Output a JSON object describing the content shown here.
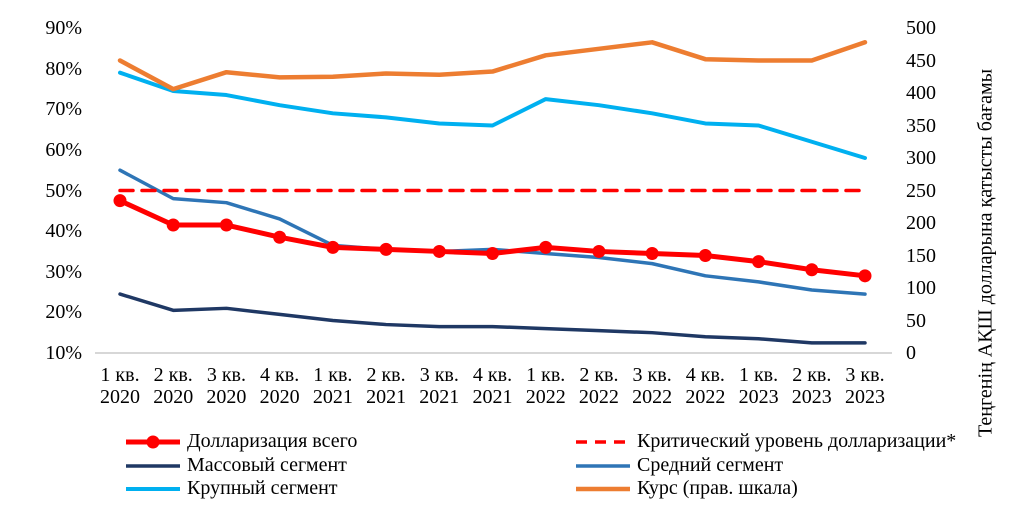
{
  "chart_data": {
    "type": "line",
    "categories": [
      "1 кв. 2020",
      "2 кв. 2020",
      "3 кв. 2020",
      "4 кв. 2020",
      "1 кв. 2021",
      "2 кв. 2021",
      "3 кв. 2021",
      "4 кв. 2021",
      "1 кв. 2022",
      "2 кв. 2022",
      "3 кв. 2022",
      "4 кв. 2022",
      "1 кв. 2023",
      "2 кв. 2023",
      "3 кв. 2023"
    ],
    "series": [
      {
        "key": "dollarization_total",
        "name": "Долларизация всего",
        "axis": "left",
        "color": "#FF0000",
        "style": "solid-marker",
        "width": 5,
        "values": [
          47.5,
          41.5,
          41.5,
          38.5,
          36,
          35.5,
          35,
          34.5,
          36,
          35,
          34.5,
          34,
          32.5,
          30.5,
          29
        ]
      },
      {
        "key": "critical_level",
        "name": "Критический уровень долларизации*",
        "axis": "left",
        "color": "#FF0000",
        "style": "dashed",
        "width": 3.5,
        "values": [
          50,
          50,
          50,
          50,
          50,
          50,
          50,
          50,
          50,
          50,
          50,
          50,
          50,
          50,
          50
        ]
      },
      {
        "key": "mass_segment",
        "name": "Массовый сегмент",
        "axis": "left",
        "color": "#1F3864",
        "style": "solid",
        "width": 3.5,
        "values": [
          24.5,
          20.5,
          21,
          19.5,
          18,
          17,
          16.5,
          16.5,
          16,
          15.5,
          15,
          14,
          13.5,
          12.5,
          12.5
        ]
      },
      {
        "key": "medium_segment",
        "name": "Средний сегмент",
        "axis": "left",
        "color": "#2E75B6",
        "style": "solid",
        "width": 3.5,
        "values": [
          55,
          48,
          47,
          43,
          36.5,
          35.5,
          35,
          35.5,
          34.5,
          33.5,
          32,
          29,
          27.5,
          25.5,
          24.5
        ]
      },
      {
        "key": "large_segment",
        "name": "Крупный сегмент",
        "axis": "left",
        "color": "#00B0F0",
        "style": "solid",
        "width": 4,
        "values": [
          79,
          74.5,
          73.5,
          71,
          69,
          68,
          66.5,
          66,
          72.5,
          71,
          69,
          66.5,
          66,
          62,
          58
        ]
      },
      {
        "key": "exchange_rate",
        "name": "Курс (прав. шкала)",
        "axis": "right",
        "color": "#ED7D31",
        "style": "solid",
        "width": 4.5,
        "values": [
          450,
          406,
          432,
          424,
          425,
          430,
          428,
          433,
          458,
          468,
          478,
          452,
          450,
          450,
          478
        ]
      }
    ],
    "left_axis": {
      "min": 10,
      "max": 90,
      "step": 10,
      "format": "percent",
      "tick_labels": [
        "10%",
        "20%",
        "30%",
        "40%",
        "50%",
        "60%",
        "70%",
        "80%",
        "90%"
      ]
    },
    "right_axis": {
      "min": 0,
      "max": 500,
      "step": 50,
      "title": "Теңгенің АҚШ долларына қатысты бағамы",
      "tick_labels": [
        "0",
        "50",
        "100",
        "150",
        "200",
        "250",
        "300",
        "350",
        "400",
        "450",
        "500"
      ]
    },
    "legend_position": "bottom",
    "grid": "off",
    "axis_line_color": "#BFBFBF"
  }
}
